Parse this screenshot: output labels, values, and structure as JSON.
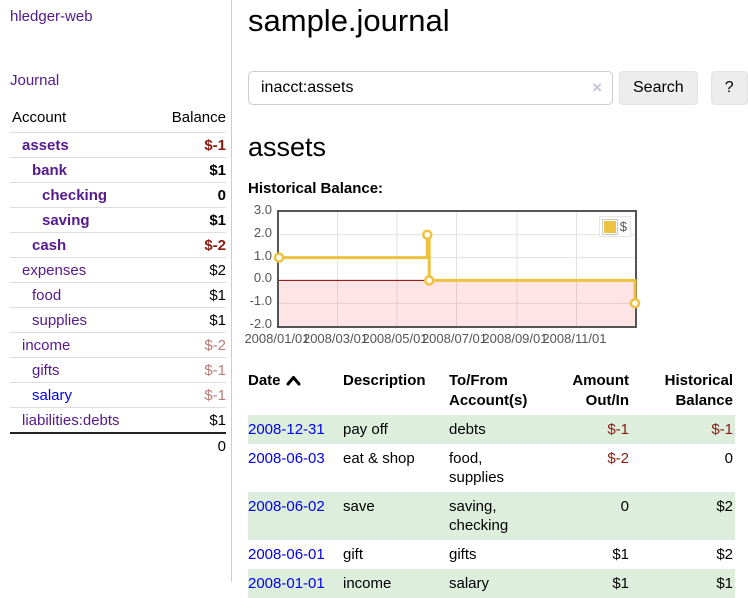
{
  "sidebar": {
    "brand": "hledger-web",
    "nav": [
      {
        "label": "Journal"
      }
    ],
    "accounts_table": {
      "headers": [
        "Account",
        "Balance"
      ],
      "rows": [
        {
          "account": "assets",
          "depth": 1,
          "bold": true,
          "balance": "$-1",
          "balance_class": "neg"
        },
        {
          "account": "bank",
          "depth": 2,
          "bold": true,
          "balance": "$1",
          "balance_class": ""
        },
        {
          "account": "checking",
          "depth": 3,
          "bold": true,
          "balance": "0",
          "balance_class": ""
        },
        {
          "account": "saving",
          "depth": 3,
          "bold": true,
          "balance": "$1",
          "balance_class": ""
        },
        {
          "account": "cash",
          "depth": 2,
          "bold": true,
          "balance": "$-2",
          "balance_class": "neg"
        },
        {
          "account": "expenses",
          "depth": 1,
          "bold": false,
          "balance": "$2",
          "balance_class": ""
        },
        {
          "account": "food",
          "depth": 2,
          "bold": false,
          "balance": "$1",
          "balance_class": ""
        },
        {
          "account": "supplies",
          "depth": 2,
          "bold": false,
          "balance": "$1",
          "balance_class": ""
        },
        {
          "account": "income",
          "depth": 1,
          "bold": false,
          "balance": "$-2",
          "balance_class": "negmuted"
        },
        {
          "account": "gifts",
          "depth": 2,
          "bold": false,
          "balance": "$-1",
          "balance_class": "negmuted"
        },
        {
          "account": "salary",
          "depth": 2,
          "bold": false,
          "balance": "$-1",
          "balance_class": "negmuted",
          "link_color": "#0000ee"
        },
        {
          "account": "liabilities:debts",
          "depth": 1,
          "bold": false,
          "balance": "$1",
          "balance_class": ""
        }
      ],
      "total": "0"
    }
  },
  "main": {
    "title": "sample.journal",
    "search": {
      "value": "inacct:assets",
      "clear_icon": "×",
      "button_label": "Search",
      "help_label": "?"
    },
    "account_heading": "assets",
    "chart_title": "Historical Balance:",
    "register": {
      "headers": [
        "Date",
        "Description",
        "To/From Account(s)",
        "Amount Out/In",
        "Historical Balance"
      ],
      "sort": "ascending",
      "rows": [
        {
          "date": "2008-12-31",
          "description": "pay off",
          "accounts": "debts",
          "amount": "$-1",
          "balance": "$-1"
        },
        {
          "date": "2008-06-03",
          "description": "eat & shop",
          "accounts": "food, supplies",
          "amount": "$-2",
          "balance": "0"
        },
        {
          "date": "2008-06-02",
          "description": "save",
          "accounts": "saving, checking",
          "amount": "0",
          "balance": "$2"
        },
        {
          "date": "2008-06-01",
          "description": "gift",
          "accounts": "gifts",
          "amount": "$1",
          "balance": "$2"
        },
        {
          "date": "2008-01-01",
          "description": "income",
          "accounts": "salary",
          "amount": "$1",
          "balance": "$1"
        }
      ]
    }
  },
  "chart_data": {
    "type": "line",
    "title": "Historical Balance:",
    "steps": true,
    "x_ticks": [
      "2008/01/01",
      "2008/03/01",
      "2008/05/01",
      "2008/07/01",
      "2008/09/01",
      "2008/11/01"
    ],
    "y_ticks": [
      "3.0",
      "2.0",
      "1.0",
      "0.0",
      "-1.0",
      "-2.0"
    ],
    "xlim": [
      "2008/01/01",
      "2008/12/31"
    ],
    "ylim": [
      -2,
      3
    ],
    "legend_position": "top-right",
    "series": [
      {
        "name": "$",
        "color": "#edc240",
        "points": [
          [
            "2008/01/01",
            1
          ],
          [
            "2008/06/01",
            2
          ],
          [
            "2008/06/03",
            0
          ],
          [
            "2008/12/31",
            -1
          ]
        ]
      }
    ],
    "colors": {
      "grid": "#e2e2e2",
      "border": "#545454",
      "zero_line": "#8b0000",
      "negative_region": "rgba(255,0,0,0.10)",
      "tick_text": "#545454"
    }
  },
  "colors": {
    "link_purple": "#551a8b",
    "link_blue": "#0000ee",
    "negative_strong": "#8b1a10",
    "negative_muted": "#b97c77",
    "row_green": "#ddeedd",
    "chart_line": "#edc240"
  }
}
